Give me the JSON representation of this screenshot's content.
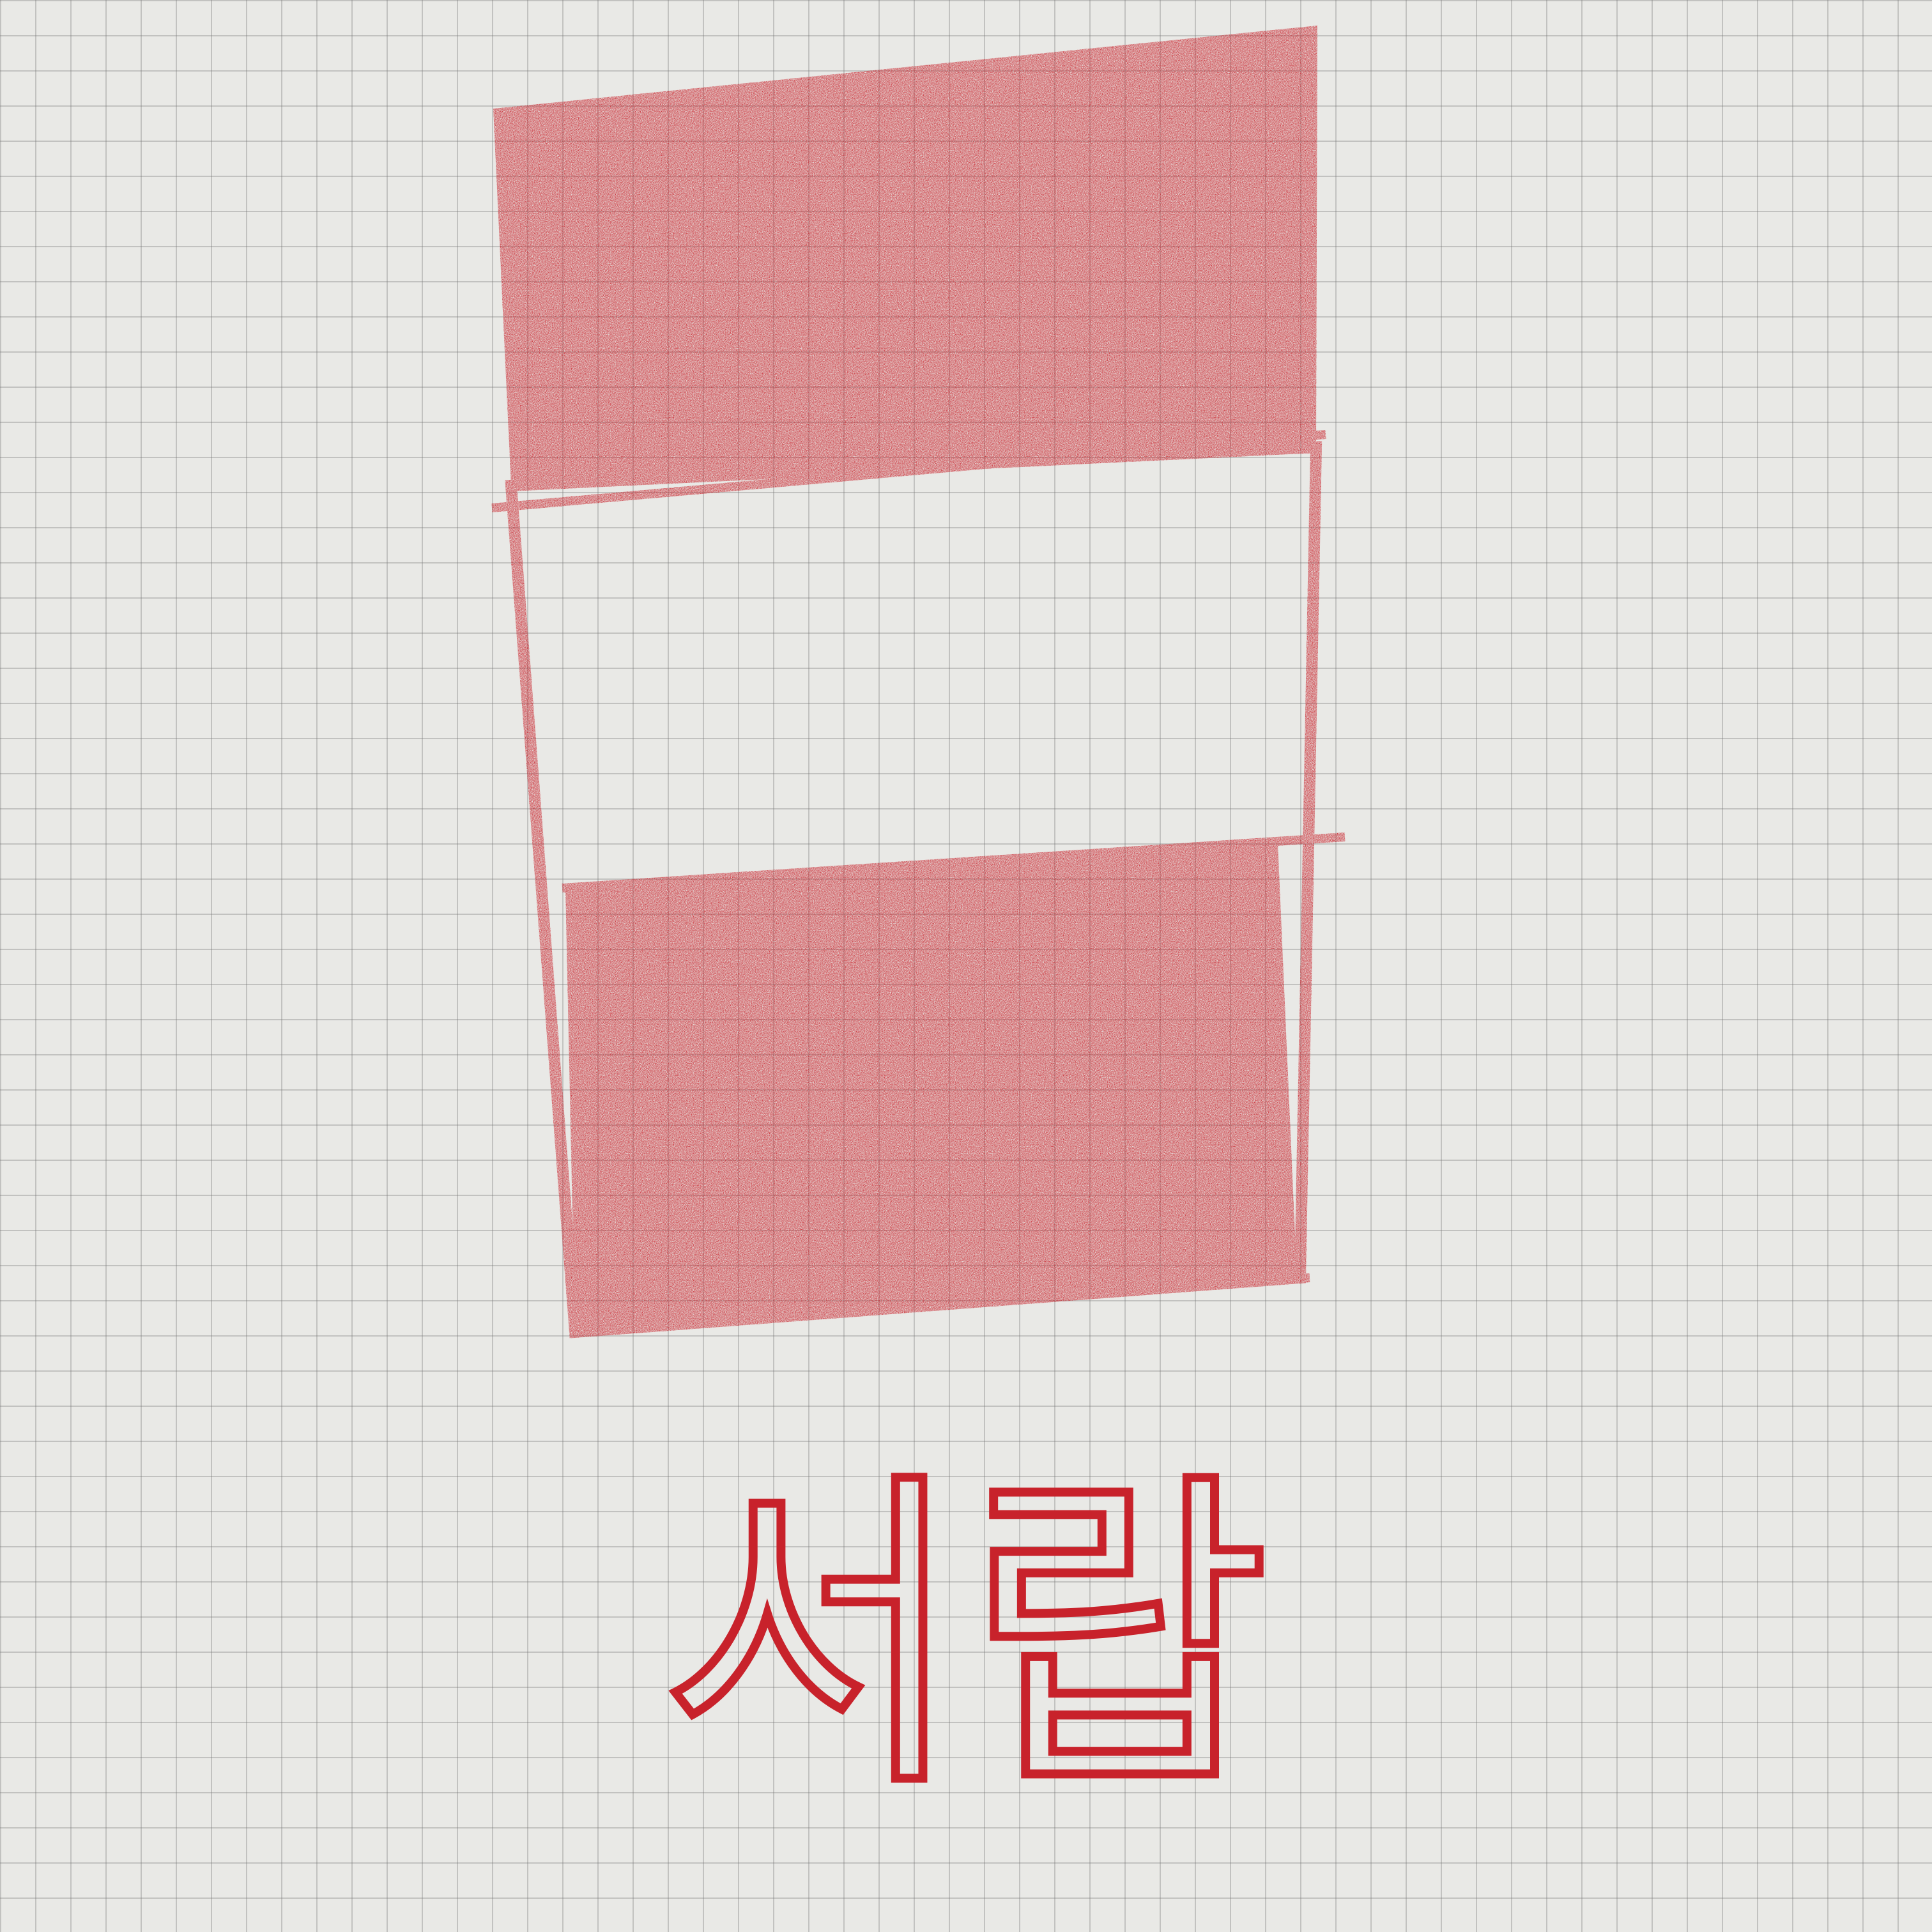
{
  "handwriting": {
    "text": "서랍"
  }
}
